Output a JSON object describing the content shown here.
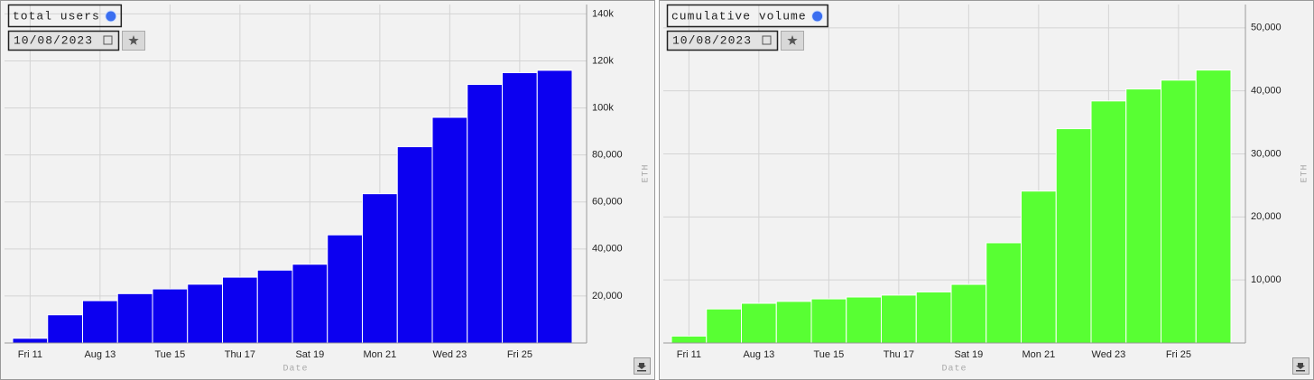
{
  "chart_data": [
    {
      "type": "bar",
      "title": "total users",
      "date": "10/08/2023",
      "xlabel": "Date",
      "ylabel": "ETH",
      "color": "#0c00f0",
      "categories": [
        "Fri 11",
        null,
        "Aug 13",
        null,
        "Tue 15",
        null,
        "Thu 17",
        null,
        "Sat 19",
        null,
        "Mon 21",
        null,
        "Wed 23",
        null,
        "Fri 25",
        null
      ],
      "values": [
        2000,
        12000,
        18000,
        21000,
        23000,
        25000,
        28000,
        31000,
        33500,
        46000,
        63500,
        83500,
        96000,
        110000,
        115000,
        116000
      ],
      "ylim": [
        0,
        144000
      ],
      "yticks": [
        {
          "value": 20000,
          "label": "20,000"
        },
        {
          "value": 40000,
          "label": "40,000"
        },
        {
          "value": 60000,
          "label": "60,000"
        },
        {
          "value": 80000,
          "label": "80,000"
        },
        {
          "value": 100000,
          "label": "100k"
        },
        {
          "value": 120000,
          "label": "120k"
        },
        {
          "value": 140000,
          "label": "140k"
        }
      ],
      "grid": true
    },
    {
      "type": "bar",
      "title": "cumulative volume",
      "date": "10/08/2023",
      "xlabel": "Date",
      "ylabel": "ETH",
      "color": "#58ff33",
      "categories": [
        "Fri 11",
        null,
        "Aug 13",
        null,
        "Tue 15",
        null,
        "Thu 17",
        null,
        "Sat 19",
        null,
        "Mon 21",
        null,
        "Wed 23",
        null,
        "Fri 25",
        null
      ],
      "values": [
        1100,
        5400,
        6300,
        6600,
        7000,
        7300,
        7600,
        8100,
        9300,
        15900,
        24100,
        34000,
        38400,
        40300,
        41700,
        43300
      ],
      "ylim": [
        0,
        53700
      ],
      "yticks": [
        {
          "value": 10000,
          "label": "10,000"
        },
        {
          "value": 20000,
          "label": "20,000"
        },
        {
          "value": 30000,
          "label": "30,000"
        },
        {
          "value": 40000,
          "label": "40,000"
        },
        {
          "value": 50000,
          "label": "50,000"
        }
      ],
      "grid": true
    }
  ]
}
